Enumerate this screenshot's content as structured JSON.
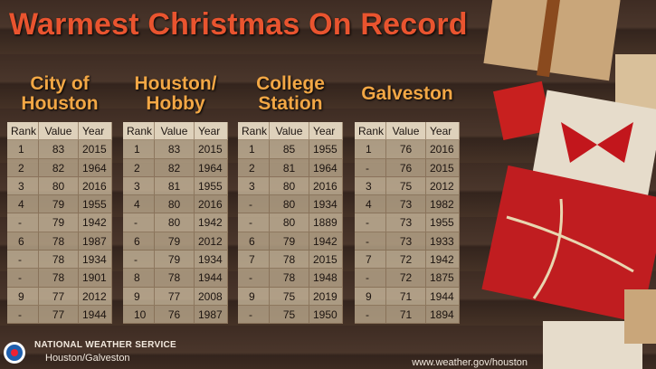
{
  "header": {
    "title": "Warmest Christmas On Record"
  },
  "tables": [
    {
      "heading": [
        "City of",
        "Houston"
      ],
      "columns": [
        "Rank",
        "Value",
        "Year"
      ],
      "rows": [
        [
          "1",
          "83",
          "2015"
        ],
        [
          "2",
          "82",
          "1964"
        ],
        [
          "3",
          "80",
          "2016"
        ],
        [
          "4",
          "79",
          "1955"
        ],
        [
          "-",
          "79",
          "1942"
        ],
        [
          "6",
          "78",
          "1987"
        ],
        [
          "-",
          "78",
          "1934"
        ],
        [
          "-",
          "78",
          "1901"
        ],
        [
          "9",
          "77",
          "2012"
        ],
        [
          "-",
          "77",
          "1944"
        ]
      ]
    },
    {
      "heading": [
        "Houston/",
        "Hobby"
      ],
      "columns": [
        "Rank",
        "Value",
        "Year"
      ],
      "rows": [
        [
          "1",
          "83",
          "2015"
        ],
        [
          "2",
          "82",
          "1964"
        ],
        [
          "3",
          "81",
          "1955"
        ],
        [
          "4",
          "80",
          "2016"
        ],
        [
          "-",
          "80",
          "1942"
        ],
        [
          "6",
          "79",
          "2012"
        ],
        [
          "-",
          "79",
          "1934"
        ],
        [
          "8",
          "78",
          "1944"
        ],
        [
          "9",
          "77",
          "2008"
        ],
        [
          "10",
          "76",
          "1987"
        ]
      ]
    },
    {
      "heading": [
        "College",
        "Station"
      ],
      "columns": [
        "Rank",
        "Value",
        "Year"
      ],
      "rows": [
        [
          "1",
          "85",
          "1955"
        ],
        [
          "2",
          "81",
          "1964"
        ],
        [
          "3",
          "80",
          "2016"
        ],
        [
          "-",
          "80",
          "1934"
        ],
        [
          "-",
          "80",
          "1889"
        ],
        [
          "6",
          "79",
          "1942"
        ],
        [
          "7",
          "78",
          "2015"
        ],
        [
          "-",
          "78",
          "1948"
        ],
        [
          "9",
          "75",
          "2019"
        ],
        [
          "-",
          "75",
          "1950"
        ]
      ]
    },
    {
      "heading": [
        "Galveston"
      ],
      "columns": [
        "Rank",
        "Value",
        "Year"
      ],
      "rows": [
        [
          "1",
          "76",
          "2016"
        ],
        [
          "-",
          "76",
          "2015"
        ],
        [
          "3",
          "75",
          "2012"
        ],
        [
          "4",
          "73",
          "1982"
        ],
        [
          "-",
          "73",
          "1955"
        ],
        [
          "-",
          "73",
          "1933"
        ],
        [
          "7",
          "72",
          "1942"
        ],
        [
          "-",
          "72",
          "1875"
        ],
        [
          "9",
          "71",
          "1944"
        ],
        [
          "-",
          "71",
          "1894"
        ]
      ]
    }
  ],
  "footer": {
    "agency": "NATIONAL WEATHER SERVICE",
    "office": "Houston/Galveston",
    "url": "www.weather.gov/houston"
  }
}
